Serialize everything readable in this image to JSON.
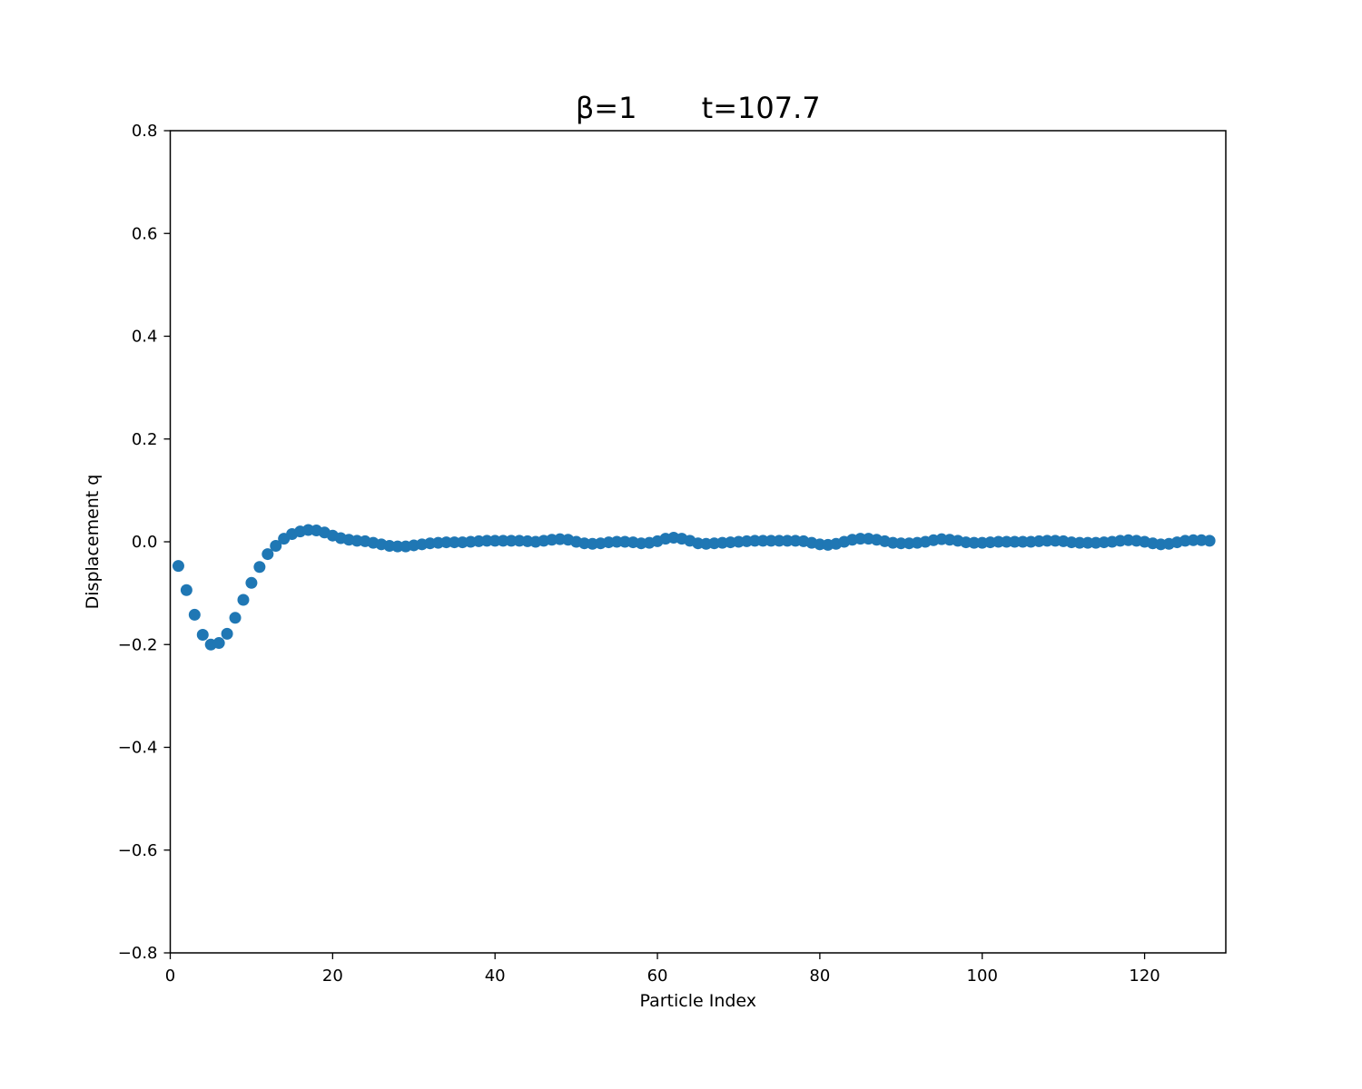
{
  "chart_data": {
    "type": "scatter",
    "title": "β=1       t=107.7",
    "xlabel": "Particle Index",
    "ylabel": "Displacement q",
    "xlim": [
      0,
      130
    ],
    "ylim": [
      -0.8,
      0.8
    ],
    "xticks": [
      0,
      20,
      40,
      60,
      80,
      100,
      120
    ],
    "xtick_labels": [
      "0",
      "20",
      "40",
      "60",
      "80",
      "100",
      "120"
    ],
    "yticks": [
      -0.8,
      -0.6,
      -0.4,
      -0.2,
      0.0,
      0.2,
      0.4,
      0.6,
      0.8
    ],
    "ytick_labels": [
      "−0.8",
      "−0.6",
      "−0.4",
      "−0.2",
      "0.0",
      "0.2",
      "0.4",
      "0.6",
      "0.8"
    ],
    "grid": false,
    "marker_color": "#1f77b4",
    "series": [
      {
        "x": [
          1,
          2,
          3,
          4,
          5,
          6,
          7,
          8,
          9,
          10,
          11,
          12,
          13,
          14,
          15,
          16,
          17,
          18,
          19,
          20,
          21,
          22,
          23,
          24,
          25,
          26,
          27,
          28,
          29,
          30,
          31,
          32,
          33,
          34,
          35,
          36,
          37,
          38,
          39,
          40,
          41,
          42,
          43,
          44,
          45,
          46,
          47,
          48,
          49,
          50,
          51,
          52,
          53,
          54,
          55,
          56,
          57,
          58,
          59,
          60,
          61,
          62,
          63,
          64,
          65,
          66,
          67,
          68,
          69,
          70,
          71,
          72,
          73,
          74,
          75,
          76,
          77,
          78,
          79,
          80,
          81,
          82,
          83,
          84,
          85,
          86,
          87,
          88,
          89,
          90,
          91,
          92,
          93,
          94,
          95,
          96,
          97,
          98,
          99,
          100,
          101,
          102,
          103,
          104,
          105,
          106,
          107,
          108,
          109,
          110,
          111,
          112,
          113,
          114,
          115,
          116,
          117,
          118,
          119,
          120,
          121,
          122,
          123,
          124,
          125,
          126,
          127,
          128
        ],
        "y": [
          -0.047,
          -0.094,
          -0.142,
          -0.181,
          -0.2,
          -0.197,
          -0.179,
          -0.148,
          -0.113,
          -0.08,
          -0.049,
          -0.024,
          -0.008,
          0.006,
          0.015,
          0.02,
          0.023,
          0.022,
          0.018,
          0.012,
          0.007,
          0.004,
          0.002,
          0.001,
          -0.002,
          -0.005,
          -0.008,
          -0.009,
          -0.009,
          -0.007,
          -0.005,
          -0.003,
          -0.002,
          -0.001,
          -0.001,
          -0.001,
          0.0,
          0.001,
          0.002,
          0.002,
          0.002,
          0.002,
          0.002,
          0.001,
          0.0,
          0.002,
          0.004,
          0.005,
          0.004,
          0.0,
          -0.003,
          -0.004,
          -0.003,
          -0.001,
          0.0,
          0.0,
          -0.001,
          -0.003,
          -0.002,
          0.001,
          0.006,
          0.008,
          0.006,
          0.002,
          -0.003,
          -0.004,
          -0.003,
          -0.002,
          -0.001,
          0.0,
          0.001,
          0.002,
          0.002,
          0.002,
          0.002,
          0.002,
          0.002,
          0.001,
          -0.002,
          -0.005,
          -0.006,
          -0.004,
          0.0,
          0.004,
          0.006,
          0.006,
          0.004,
          0.001,
          -0.002,
          -0.003,
          -0.003,
          -0.002,
          0.0,
          0.003,
          0.005,
          0.004,
          0.002,
          -0.001,
          -0.002,
          -0.002,
          -0.001,
          0.0,
          0.0,
          0.0,
          0.0,
          0.0,
          0.001,
          0.002,
          0.002,
          0.001,
          -0.001,
          -0.002,
          -0.002,
          -0.002,
          -0.001,
          0.0,
          0.002,
          0.003,
          0.002,
          0.0,
          -0.003,
          -0.005,
          -0.004,
          -0.001,
          0.002,
          0.003,
          0.003,
          0.002
        ]
      }
    ]
  }
}
